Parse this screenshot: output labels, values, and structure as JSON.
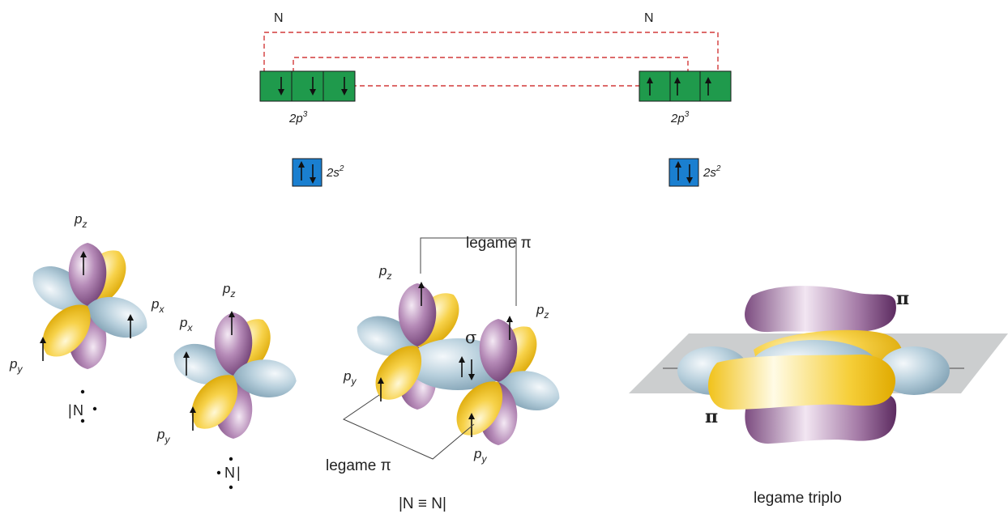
{
  "atoms": {
    "left": {
      "symbol": "N",
      "p_config": "2p",
      "p_exp": "3",
      "s_config": "2s",
      "s_exp": "2"
    },
    "right": {
      "symbol": "N",
      "p_config": "2p",
      "p_exp": "3",
      "s_config": "2s",
      "s_exp": "2"
    }
  },
  "orbital_labels": {
    "pz": "p",
    "pz_sub": "z",
    "px": "p",
    "px_sub": "x",
    "py": "p",
    "py_sub": "y"
  },
  "lewis": {
    "left_atom": "N",
    "right_atom": "N",
    "molecule": "|N ≡ N|"
  },
  "bonds": {
    "pi_label": "legame π",
    "sigma": "σ",
    "pi_symbol": "π",
    "triple_caption": "legame triplo"
  },
  "colors": {
    "p_box": "#1f9a4c",
    "s_box": "#1a7fd0",
    "dashed_link": "#d23a3a",
    "purple_lobe": "#8a5a8c",
    "yellow_lobe": "#f2c21a",
    "blue_lobe": "#a9c3d2",
    "plane": "#c9cbcc"
  }
}
